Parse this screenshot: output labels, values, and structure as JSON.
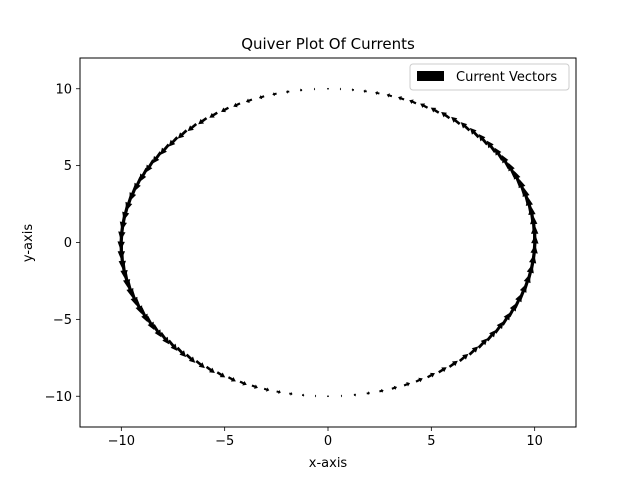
{
  "chart_data": {
    "type": "quiver",
    "title": "Quiver Plot Of Currents",
    "xlabel": "x-axis",
    "ylabel": "y-axis",
    "xlim": [
      -12,
      12
    ],
    "ylim": [
      -12,
      12
    ],
    "x_ticks": [
      -10,
      -5,
      0,
      5,
      10
    ],
    "y_ticks": [
      -10,
      -5,
      0,
      5,
      10
    ],
    "x_tick_labels": [
      "−10",
      "−5",
      "0",
      "5",
      "10"
    ],
    "y_tick_labels": [
      "−10",
      "−5",
      "0",
      "5",
      "10"
    ],
    "grid": false,
    "legend": {
      "position": "top-right",
      "entries": [
        "Current Vectors"
      ]
    },
    "field": {
      "description": "points on circle of radius 10, tangential (counter-clockwise) vectors with magnitude proportional to |x|",
      "radius": 10,
      "num_points": 100,
      "u": "-y",
      "v": "x",
      "magnitude": "|x|"
    },
    "arrow_color": "#000000"
  }
}
